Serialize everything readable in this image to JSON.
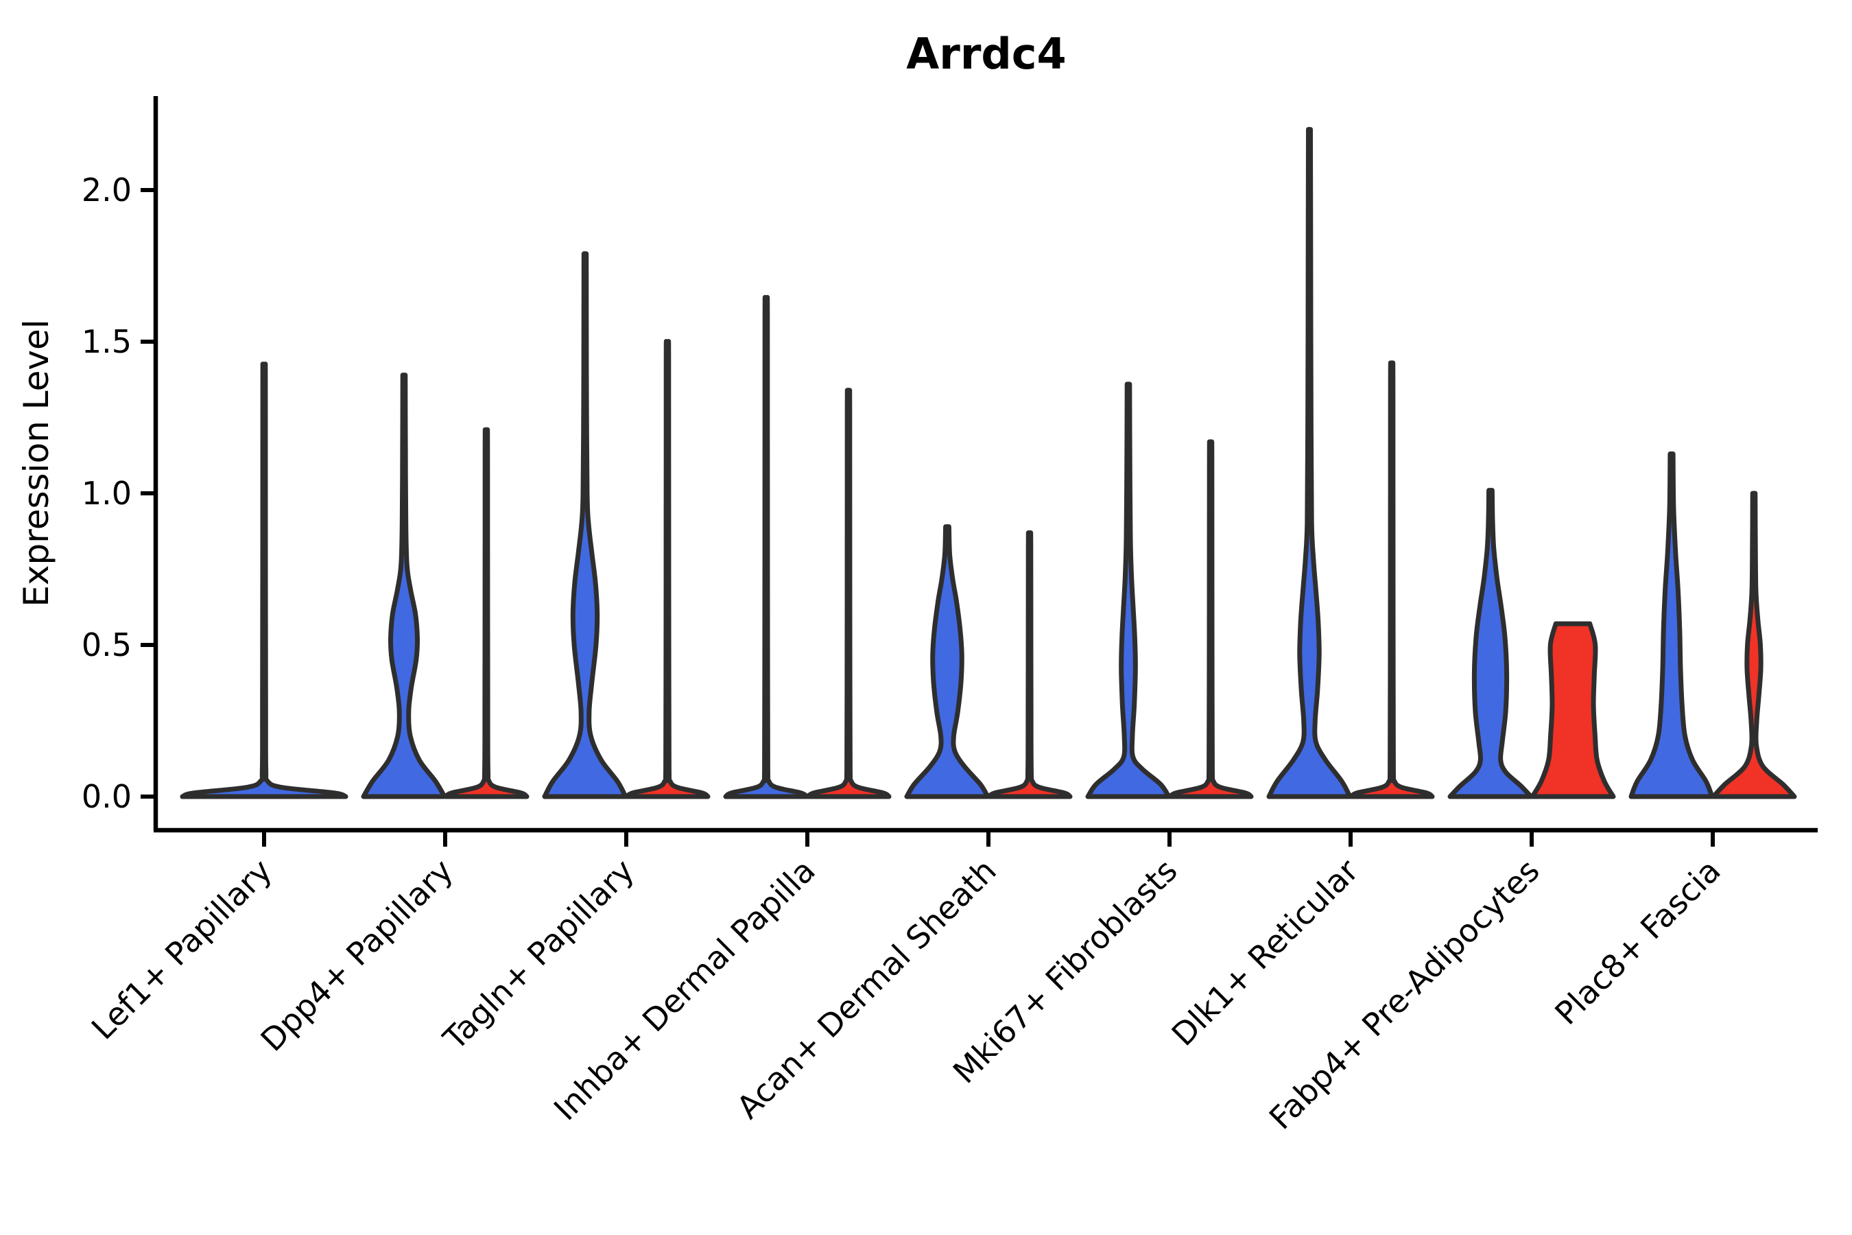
{
  "chart_data": {
    "type": "violin",
    "title": "Arrdc4",
    "xlabel": "",
    "ylabel": "Expression Level",
    "ylim": [
      -0.11,
      2.31
    ],
    "yticks": [
      0.0,
      0.5,
      1.0,
      1.5,
      2.0
    ],
    "ytick_labels": [
      "0.0",
      "0.5",
      "1.0",
      "1.5",
      "2.0"
    ],
    "grid": false,
    "legend": "none",
    "colors": {
      "group_blue": "#4169E1",
      "group_red": "#F13226",
      "edge": "#2e2e2e",
      "axis": "#000000"
    },
    "categories": [
      "Lef1+ Papillary",
      "Dpp4+ Papillary",
      "Tagln+ Papillary",
      "Inhba+ Dermal Papilla",
      "Acan+ Dermal Sheath",
      "Mki67+ Fibroblasts",
      "Dlk1+ Reticular",
      "Fabp4+ Pre-Adipocytes",
      "Plac8+ Fascia"
    ],
    "violins": [
      {
        "category_index": 0,
        "category": "Lef1+ Papillary",
        "group": "group_blue",
        "side": "center",
        "width": "full",
        "max": 1.41,
        "profile": [
          [
            0,
            1.0
          ],
          [
            0.012,
            0.86
          ],
          [
            0.03,
            0.22
          ],
          [
            0.05,
            0.045
          ],
          [
            0.09,
            0.022
          ],
          [
            0.3,
            0.019
          ],
          [
            0.8,
            0.017
          ],
          [
            1.37,
            0.016
          ],
          [
            1.41,
            0.015
          ]
        ]
      },
      {
        "category_index": 1,
        "category": "Dpp4+ Papillary",
        "group": "group_blue",
        "side": "left",
        "width": "half",
        "max": 1.39,
        "profile": [
          [
            0,
            1.0
          ],
          [
            0.05,
            0.78
          ],
          [
            0.12,
            0.38
          ],
          [
            0.2,
            0.155
          ],
          [
            0.28,
            0.115
          ],
          [
            0.36,
            0.18
          ],
          [
            0.45,
            0.3
          ],
          [
            0.52,
            0.33
          ],
          [
            0.6,
            0.285
          ],
          [
            0.68,
            0.165
          ],
          [
            0.76,
            0.075
          ],
          [
            0.9,
            0.045
          ],
          [
            1.15,
            0.035
          ],
          [
            1.39,
            0.03
          ]
        ]
      },
      {
        "category_index": 1,
        "category": "Dpp4+ Papillary",
        "group": "group_red",
        "side": "right",
        "width": "half",
        "max": 1.21,
        "profile": [
          [
            0,
            1.0
          ],
          [
            0.012,
            0.86
          ],
          [
            0.03,
            0.25
          ],
          [
            0.05,
            0.07
          ],
          [
            0.09,
            0.04
          ],
          [
            0.3,
            0.035
          ],
          [
            0.7,
            0.032
          ],
          [
            1.15,
            0.03
          ],
          [
            1.21,
            0.028
          ]
        ]
      },
      {
        "category_index": 2,
        "category": "Tagln+ Papillary",
        "group": "group_blue",
        "side": "left",
        "width": "half",
        "max": 1.79,
        "profile": [
          [
            0,
            1.0
          ],
          [
            0.05,
            0.8
          ],
          [
            0.12,
            0.4
          ],
          [
            0.2,
            0.14
          ],
          [
            0.28,
            0.1
          ],
          [
            0.38,
            0.17
          ],
          [
            0.5,
            0.27
          ],
          [
            0.6,
            0.3
          ],
          [
            0.7,
            0.26
          ],
          [
            0.8,
            0.17
          ],
          [
            0.9,
            0.085
          ],
          [
            1.0,
            0.05
          ],
          [
            1.3,
            0.035
          ],
          [
            1.6,
            0.03
          ],
          [
            1.79,
            0.028
          ]
        ]
      },
      {
        "category_index": 2,
        "category": "Tagln+ Papillary",
        "group": "group_red",
        "side": "right",
        "width": "half",
        "max": 1.5,
        "profile": [
          [
            0,
            1.0
          ],
          [
            0.012,
            0.86
          ],
          [
            0.03,
            0.25
          ],
          [
            0.05,
            0.07
          ],
          [
            0.09,
            0.04
          ],
          [
            0.4,
            0.035
          ],
          [
            0.95,
            0.032
          ],
          [
            1.44,
            0.03
          ],
          [
            1.5,
            0.028
          ]
        ]
      },
      {
        "category_index": 3,
        "category": "Inhba+ Dermal Papilla",
        "group": "group_blue",
        "side": "left",
        "width": "half",
        "max": 1.64,
        "profile": [
          [
            0,
            1.0
          ],
          [
            0.012,
            0.86
          ],
          [
            0.03,
            0.25
          ],
          [
            0.05,
            0.07
          ],
          [
            0.09,
            0.04
          ],
          [
            0.4,
            0.035
          ],
          [
            1.0,
            0.032
          ],
          [
            1.58,
            0.03
          ],
          [
            1.64,
            0.028
          ]
        ]
      },
      {
        "category_index": 3,
        "category": "Inhba+ Dermal Papilla",
        "group": "group_red",
        "side": "right",
        "width": "half",
        "max": 1.34,
        "profile": [
          [
            0,
            1.0
          ],
          [
            0.012,
            0.86
          ],
          [
            0.03,
            0.25
          ],
          [
            0.05,
            0.07
          ],
          [
            0.09,
            0.04
          ],
          [
            0.35,
            0.035
          ],
          [
            0.85,
            0.032
          ],
          [
            1.28,
            0.03
          ],
          [
            1.34,
            0.028
          ]
        ]
      },
      {
        "category_index": 4,
        "category": "Acan+ Dermal Sheath",
        "group": "group_blue",
        "side": "left",
        "width": "half",
        "max": 0.89,
        "profile": [
          [
            0,
            1.0
          ],
          [
            0.04,
            0.82
          ],
          [
            0.1,
            0.42
          ],
          [
            0.15,
            0.185
          ],
          [
            0.2,
            0.16
          ],
          [
            0.28,
            0.26
          ],
          [
            0.38,
            0.34
          ],
          [
            0.47,
            0.36
          ],
          [
            0.56,
            0.31
          ],
          [
            0.65,
            0.22
          ],
          [
            0.72,
            0.13
          ],
          [
            0.8,
            0.06
          ],
          [
            0.89,
            0.04
          ]
        ]
      },
      {
        "category_index": 4,
        "category": "Acan+ Dermal Sheath",
        "group": "group_red",
        "side": "right",
        "width": "half",
        "max": 0.87,
        "profile": [
          [
            0,
            1.0
          ],
          [
            0.012,
            0.86
          ],
          [
            0.03,
            0.25
          ],
          [
            0.05,
            0.07
          ],
          [
            0.09,
            0.04
          ],
          [
            0.3,
            0.036
          ],
          [
            0.6,
            0.032
          ],
          [
            0.82,
            0.03
          ],
          [
            0.87,
            0.028
          ]
        ]
      },
      {
        "category_index": 5,
        "category": "Mki67+ Fibroblasts",
        "group": "group_blue",
        "side": "left",
        "width": "half",
        "max": 1.36,
        "profile": [
          [
            0,
            1.0
          ],
          [
            0.04,
            0.8
          ],
          [
            0.09,
            0.35
          ],
          [
            0.13,
            0.115
          ],
          [
            0.2,
            0.1
          ],
          [
            0.3,
            0.145
          ],
          [
            0.42,
            0.175
          ],
          [
            0.52,
            0.16
          ],
          [
            0.62,
            0.12
          ],
          [
            0.72,
            0.08
          ],
          [
            0.85,
            0.05
          ],
          [
            1.1,
            0.038
          ],
          [
            1.36,
            0.03
          ]
        ]
      },
      {
        "category_index": 5,
        "category": "Mki67+ Fibroblasts",
        "group": "group_red",
        "side": "right",
        "width": "half",
        "max": 1.17,
        "profile": [
          [
            0,
            1.0
          ],
          [
            0.012,
            0.86
          ],
          [
            0.03,
            0.25
          ],
          [
            0.05,
            0.07
          ],
          [
            0.09,
            0.04
          ],
          [
            0.35,
            0.035
          ],
          [
            0.8,
            0.032
          ],
          [
            1.12,
            0.03
          ],
          [
            1.17,
            0.028
          ]
        ]
      },
      {
        "category_index": 6,
        "category": "Dlk1+ Reticular",
        "group": "group_blue",
        "side": "left",
        "width": "half",
        "max": 2.2,
        "profile": [
          [
            0,
            1.0
          ],
          [
            0.05,
            0.8
          ],
          [
            0.12,
            0.4
          ],
          [
            0.18,
            0.16
          ],
          [
            0.25,
            0.14
          ],
          [
            0.35,
            0.2
          ],
          [
            0.47,
            0.24
          ],
          [
            0.58,
            0.215
          ],
          [
            0.68,
            0.16
          ],
          [
            0.78,
            0.1
          ],
          [
            0.9,
            0.055
          ],
          [
            1.2,
            0.04
          ],
          [
            1.7,
            0.032
          ],
          [
            2.2,
            0.026
          ]
        ]
      },
      {
        "category_index": 6,
        "category": "Dlk1+ Reticular",
        "group": "group_red",
        "side": "right",
        "width": "half",
        "max": 1.43,
        "profile": [
          [
            0,
            1.0
          ],
          [
            0.012,
            0.86
          ],
          [
            0.03,
            0.25
          ],
          [
            0.05,
            0.07
          ],
          [
            0.09,
            0.04
          ],
          [
            0.4,
            0.035
          ],
          [
            0.95,
            0.032
          ],
          [
            1.37,
            0.03
          ],
          [
            1.43,
            0.028
          ]
        ]
      },
      {
        "category_index": 7,
        "category": "Fabp4+ Pre-Adipocytes",
        "group": "group_blue",
        "side": "left",
        "width": "half",
        "max": 1.01,
        "profile": [
          [
            0,
            1.0
          ],
          [
            0.035,
            0.75
          ],
          [
            0.08,
            0.38
          ],
          [
            0.12,
            0.25
          ],
          [
            0.18,
            0.29
          ],
          [
            0.28,
            0.375
          ],
          [
            0.4,
            0.4
          ],
          [
            0.52,
            0.36
          ],
          [
            0.62,
            0.27
          ],
          [
            0.72,
            0.16
          ],
          [
            0.82,
            0.08
          ],
          [
            0.92,
            0.05
          ],
          [
            1.01,
            0.04
          ]
        ]
      },
      {
        "category_index": 7,
        "category": "Fabp4+ Pre-Adipocytes",
        "group": "group_red",
        "side": "right",
        "width": "half",
        "max": 0.57,
        "flat_top": true,
        "profile": [
          [
            0,
            1.0
          ],
          [
            0.05,
            0.78
          ],
          [
            0.12,
            0.6
          ],
          [
            0.2,
            0.55
          ],
          [
            0.3,
            0.51
          ],
          [
            0.4,
            0.53
          ],
          [
            0.5,
            0.555
          ],
          [
            0.57,
            0.42
          ]
        ]
      },
      {
        "category_index": 8,
        "category": "Plac8+ Fascia",
        "group": "group_blue",
        "side": "left",
        "width": "half",
        "max": 1.13,
        "profile": [
          [
            0,
            1.0
          ],
          [
            0.05,
            0.85
          ],
          [
            0.12,
            0.52
          ],
          [
            0.2,
            0.33
          ],
          [
            0.3,
            0.26
          ],
          [
            0.42,
            0.22
          ],
          [
            0.55,
            0.2
          ],
          [
            0.68,
            0.16
          ],
          [
            0.8,
            0.1
          ],
          [
            0.95,
            0.05
          ],
          [
            1.13,
            0.035
          ]
        ]
      },
      {
        "category_index": 8,
        "category": "Plac8+ Fascia",
        "group": "group_red",
        "side": "right",
        "width": "half",
        "max": 1.0,
        "profile": [
          [
            0,
            1.0
          ],
          [
            0.04,
            0.72
          ],
          [
            0.1,
            0.22
          ],
          [
            0.17,
            0.06
          ],
          [
            0.25,
            0.07
          ],
          [
            0.33,
            0.12
          ],
          [
            0.42,
            0.17
          ],
          [
            0.5,
            0.16
          ],
          [
            0.58,
            0.1
          ],
          [
            0.68,
            0.05
          ],
          [
            0.85,
            0.035
          ],
          [
            1.0,
            0.03
          ]
        ]
      }
    ]
  }
}
